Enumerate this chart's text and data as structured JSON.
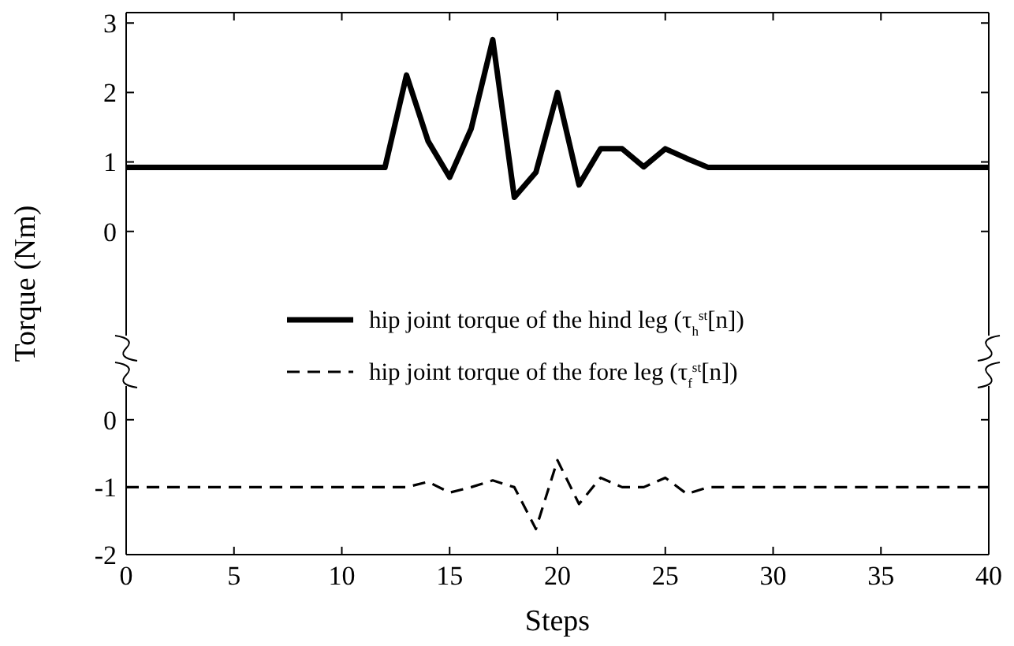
{
  "chart_data": [
    {
      "type": "line",
      "ylabel": "Torque (Nm)",
      "x": [
        0,
        1,
        2,
        3,
        4,
        5,
        6,
        7,
        8,
        9,
        10,
        11,
        12,
        13,
        14,
        15,
        16,
        17,
        18,
        19,
        20,
        21,
        22,
        23,
        24,
        25,
        26,
        27,
        28,
        29,
        30,
        31,
        32,
        33,
        34,
        35,
        36,
        37,
        38,
        39,
        40
      ],
      "xlim": [
        0,
        40
      ],
      "ylim": [
        -1.5,
        3.15
      ],
      "xticks": [
        0,
        5,
        10,
        15,
        20,
        25,
        30,
        35,
        40
      ],
      "yticks": [
        0,
        1,
        2,
        3
      ],
      "tick_labels": "y",
      "legend": "bottom",
      "grid": false,
      "line_style": "solid",
      "series": [
        {
          "name": "hip joint torque of the hind leg (τ$_{h}$$^{st}$[n])",
          "color": "#000000",
          "values": [
            0.92,
            0.92,
            0.92,
            0.92,
            0.92,
            0.92,
            0.92,
            0.92,
            0.92,
            0.92,
            0.92,
            0.92,
            0.92,
            2.25,
            1.3,
            0.78,
            1.48,
            2.76,
            0.49,
            0.85,
            2.0,
            0.67,
            1.19,
            1.19,
            0.93,
            1.19,
            1.05,
            0.92,
            0.92,
            0.92,
            0.92,
            0.92,
            0.92,
            0.92,
            0.92,
            0.92,
            0.92,
            0.92,
            0.92,
            0.92,
            0.92
          ]
        }
      ]
    },
    {
      "type": "line",
      "xlabel": "Steps",
      "x": [
        0,
        1,
        2,
        3,
        4,
        5,
        6,
        7,
        8,
        9,
        10,
        11,
        12,
        13,
        14,
        15,
        16,
        17,
        18,
        19,
        20,
        21,
        22,
        23,
        24,
        25,
        26,
        27,
        28,
        29,
        30,
        31,
        32,
        33,
        34,
        35,
        36,
        37,
        38,
        39,
        40
      ],
      "xlim": [
        0,
        40
      ],
      "ylim": [
        -2,
        0.5
      ],
      "xticks": [
        0,
        5,
        10,
        15,
        20,
        25,
        30,
        35,
        40
      ],
      "yticks": [
        -2,
        -1,
        0
      ],
      "legend": "top",
      "grid": false,
      "line_style": "dashed",
      "series": [
        {
          "name": "hip joint torque of the fore leg (τ$_{f}$$^{st}$[n])",
          "color": "#000000",
          "values": [
            -1.0,
            -1.0,
            -1.0,
            -1.0,
            -1.0,
            -1.0,
            -1.0,
            -1.0,
            -1.0,
            -1.0,
            -1.0,
            -1.0,
            -1.0,
            -1.0,
            -0.92,
            -1.08,
            -1.0,
            -0.9,
            -1.0,
            -1.62,
            -0.6,
            -1.25,
            -0.86,
            -1.0,
            -1.0,
            -0.86,
            -1.1,
            -1.0,
            -1.0,
            -1.0,
            -1.0,
            -1.0,
            -1.0,
            -1.0,
            -1.0,
            -1.0,
            -1.0,
            -1.0,
            -1.0,
            -1.0,
            -1.0
          ]
        }
      ]
    }
  ]
}
